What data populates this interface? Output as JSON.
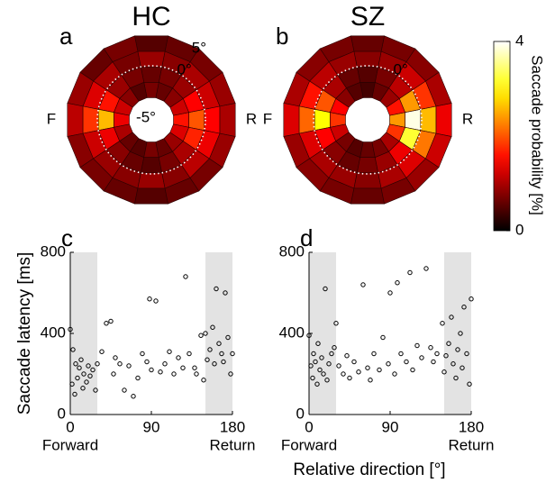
{
  "xlabel": "Relative direction [°]",
  "colorbar": {
    "label": "Saccade probability [%]",
    "lim": [
      0,
      4
    ],
    "ticks": [
      0,
      4
    ]
  },
  "chart_data": [
    {
      "type": "polar-heatmap",
      "panel_label": "a",
      "title": "HC",
      "side_labels": [
        "F",
        "R"
      ],
      "ring_edges": [
        -6,
        -3,
        0,
        3,
        6
      ],
      "ring_ticks": [
        {
          "value": -5,
          "label": "-5°"
        },
        {
          "value": 0,
          "label": "0°"
        },
        {
          "value": 5,
          "label": "5°"
        }
      ],
      "values": [
        [
          1.6,
          1.2,
          0.8,
          0.6,
          0.7,
          0.5,
          0.8,
          1.2,
          1.4,
          1.0,
          0.6,
          0.5,
          0.7,
          0.6,
          0.9,
          1.3
        ],
        [
          2.0,
          1.5,
          0.9,
          0.7,
          0.6,
          0.7,
          0.9,
          1.6,
          2.6,
          1.4,
          0.8,
          0.6,
          0.5,
          0.7,
          1.0,
          1.7
        ],
        [
          1.5,
          1.2,
          1.0,
          0.8,
          0.9,
          0.7,
          1.0,
          1.3,
          1.8,
          1.2,
          0.9,
          0.8,
          0.9,
          0.8,
          1.1,
          1.4
        ],
        [
          1.0,
          0.9,
          0.7,
          0.6,
          0.5,
          0.7,
          0.6,
          0.9,
          1.1,
          0.8,
          0.7,
          0.6,
          0.5,
          0.6,
          0.7,
          0.9
        ]
      ]
    },
    {
      "type": "polar-heatmap",
      "panel_label": "b",
      "title": "SZ",
      "side_labels": [
        "F",
        "R"
      ],
      "ring_edges": [
        -6,
        -3,
        0,
        3,
        6
      ],
      "ring_ticks": [
        {
          "value": 0,
          "label": "0°"
        }
      ],
      "values": [
        [
          2.4,
          1.6,
          0.9,
          0.6,
          0.4,
          0.5,
          0.8,
          1.5,
          1.8,
          1.2,
          0.7,
          0.5,
          0.6,
          0.7,
          1.0,
          1.8
        ],
        [
          3.9,
          2.4,
          1.1,
          0.7,
          0.5,
          0.6,
          1.0,
          2.0,
          3.0,
          1.5,
          0.8,
          0.6,
          0.7,
          0.9,
          1.4,
          3.2
        ],
        [
          2.6,
          1.8,
          1.2,
          0.9,
          0.8,
          0.9,
          1.1,
          1.6,
          2.1,
          1.3,
          1.0,
          0.9,
          0.8,
          1.0,
          1.3,
          2.2
        ],
        [
          1.4,
          1.0,
          0.8,
          0.7,
          0.6,
          0.7,
          0.8,
          1.0,
          1.3,
          0.9,
          0.8,
          0.7,
          0.6,
          0.7,
          0.9,
          1.2
        ]
      ]
    },
    {
      "type": "scatter",
      "panel_label": "c",
      "ylabel": "Saccade latency [ms]",
      "x_end_labels": [
        "Forward",
        "Return"
      ],
      "xlim": [
        0,
        180
      ],
      "xticks": [
        0,
        90,
        180
      ],
      "ylim": [
        0,
        800
      ],
      "yticks": [
        0,
        400,
        800
      ],
      "shaded": [
        [
          0,
          30
        ],
        [
          150,
          180
        ]
      ],
      "x": [
        0,
        2,
        3,
        5,
        6,
        8,
        10,
        12,
        14,
        15,
        18,
        20,
        22,
        25,
        28,
        30,
        35,
        40,
        45,
        48,
        50,
        55,
        60,
        65,
        70,
        75,
        80,
        85,
        88,
        90,
        95,
        100,
        105,
        110,
        115,
        120,
        125,
        128,
        132,
        138,
        140,
        145,
        148,
        150,
        152,
        155,
        158,
        160,
        162,
        165,
        168,
        170,
        172,
        175,
        178,
        180
      ],
      "y": [
        420,
        150,
        320,
        100,
        250,
        180,
        230,
        270,
        130,
        200,
        160,
        240,
        190,
        220,
        120,
        250,
        310,
        450,
        460,
        200,
        280,
        250,
        120,
        240,
        90,
        180,
        300,
        260,
        570,
        220,
        560,
        210,
        250,
        310,
        200,
        280,
        230,
        680,
        300,
        230,
        200,
        390,
        170,
        400,
        270,
        320,
        430,
        250,
        620,
        350,
        300,
        260,
        600,
        380,
        200,
        300
      ]
    },
    {
      "type": "scatter",
      "panel_label": "d",
      "x_end_labels": [
        "Forward",
        "Return"
      ],
      "xlim": [
        0,
        180
      ],
      "xticks": [
        0,
        90,
        180
      ],
      "ylim": [
        0,
        800
      ],
      "yticks": [
        0,
        400,
        800
      ],
      "shaded": [
        [
          0,
          30
        ],
        [
          150,
          180
        ]
      ],
      "x": [
        0,
        2,
        4,
        5,
        7,
        9,
        10,
        12,
        14,
        16,
        18,
        20,
        22,
        25,
        28,
        30,
        33,
        38,
        42,
        45,
        50,
        55,
        60,
        65,
        68,
        72,
        78,
        82,
        88,
        90,
        95,
        98,
        102,
        108,
        112,
        115,
        120,
        125,
        130,
        135,
        138,
        142,
        148,
        150,
        152,
        155,
        158,
        160,
        163,
        165,
        168,
        170,
        172,
        175,
        178,
        180
      ],
      "y": [
        390,
        240,
        180,
        300,
        260,
        150,
        350,
        220,
        280,
        200,
        620,
        170,
        250,
        300,
        330,
        450,
        240,
        200,
        290,
        180,
        260,
        210,
        640,
        230,
        170,
        300,
        220,
        380,
        250,
        600,
        200,
        650,
        300,
        260,
        700,
        220,
        340,
        280,
        720,
        330,
        260,
        300,
        450,
        210,
        290,
        350,
        480,
        250,
        180,
        320,
        400,
        230,
        530,
        300,
        150,
        570
      ]
    }
  ]
}
